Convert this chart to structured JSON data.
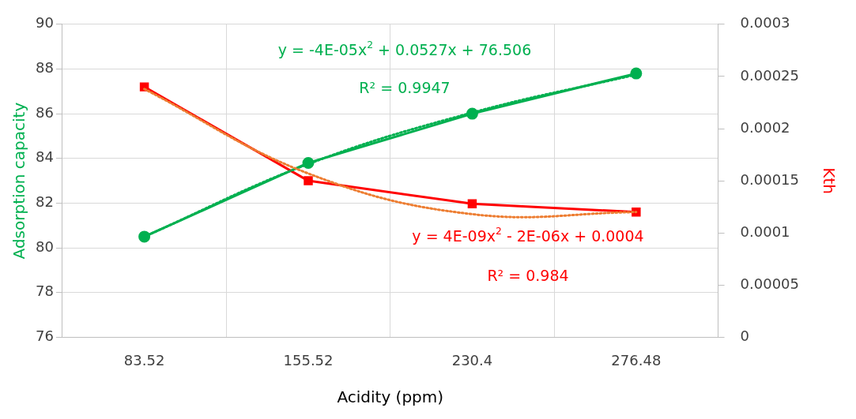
{
  "chart_data": {
    "type": "line",
    "xlabel": "Acidity (ppm)",
    "ylabel": "Adsorption capacity",
    "y2label": "Kth",
    "categories": [
      "83.52",
      "155.52",
      "230.4",
      "276.48"
    ],
    "series": [
      {
        "color": "#00b050",
        "values": [
          80.5,
          83.8,
          86.0,
          87.8
        ],
        "marker": "circle",
        "line_style": "solid"
      },
      {
        "color": "#ff0000",
        "values": [
          0.00024,
          0.00015,
          0.000128,
          0.00012
        ],
        "axis": "y2",
        "marker": "square",
        "line_style": "solid"
      },
      {
        "color": "#00b050",
        "values": [
          80.5,
          83.75,
          86.05,
          87.75
        ],
        "marker": "none",
        "line_style": "dotted"
      },
      {
        "color": "#ed7d31",
        "values": [
          0.000238,
          0.000157,
          0.000118,
          0.00012
        ],
        "axis": "y2",
        "marker": "none",
        "line_style": "dotted"
      }
    ],
    "ylim": [
      76,
      90
    ],
    "yticks": [
      76,
      78,
      80,
      82,
      84,
      86,
      88,
      90
    ],
    "y2lim": [
      0,
      0.0003
    ],
    "y2ticks": [
      0,
      {
        "value": 5e-05,
        "label": "0.00005"
      },
      0.0001,
      0.00015,
      0.0002,
      0.00025,
      0.0003
    ],
    "grid": true,
    "legend": false,
    "annotations": [
      "y = -4E-05x$^{2}$ + 0.0527x + 76.506",
      "R² = 0.9947",
      "y = 4E-09x$^{2}$ - 2E-06x + 0.0004",
      "R² = 0.984"
    ]
  }
}
